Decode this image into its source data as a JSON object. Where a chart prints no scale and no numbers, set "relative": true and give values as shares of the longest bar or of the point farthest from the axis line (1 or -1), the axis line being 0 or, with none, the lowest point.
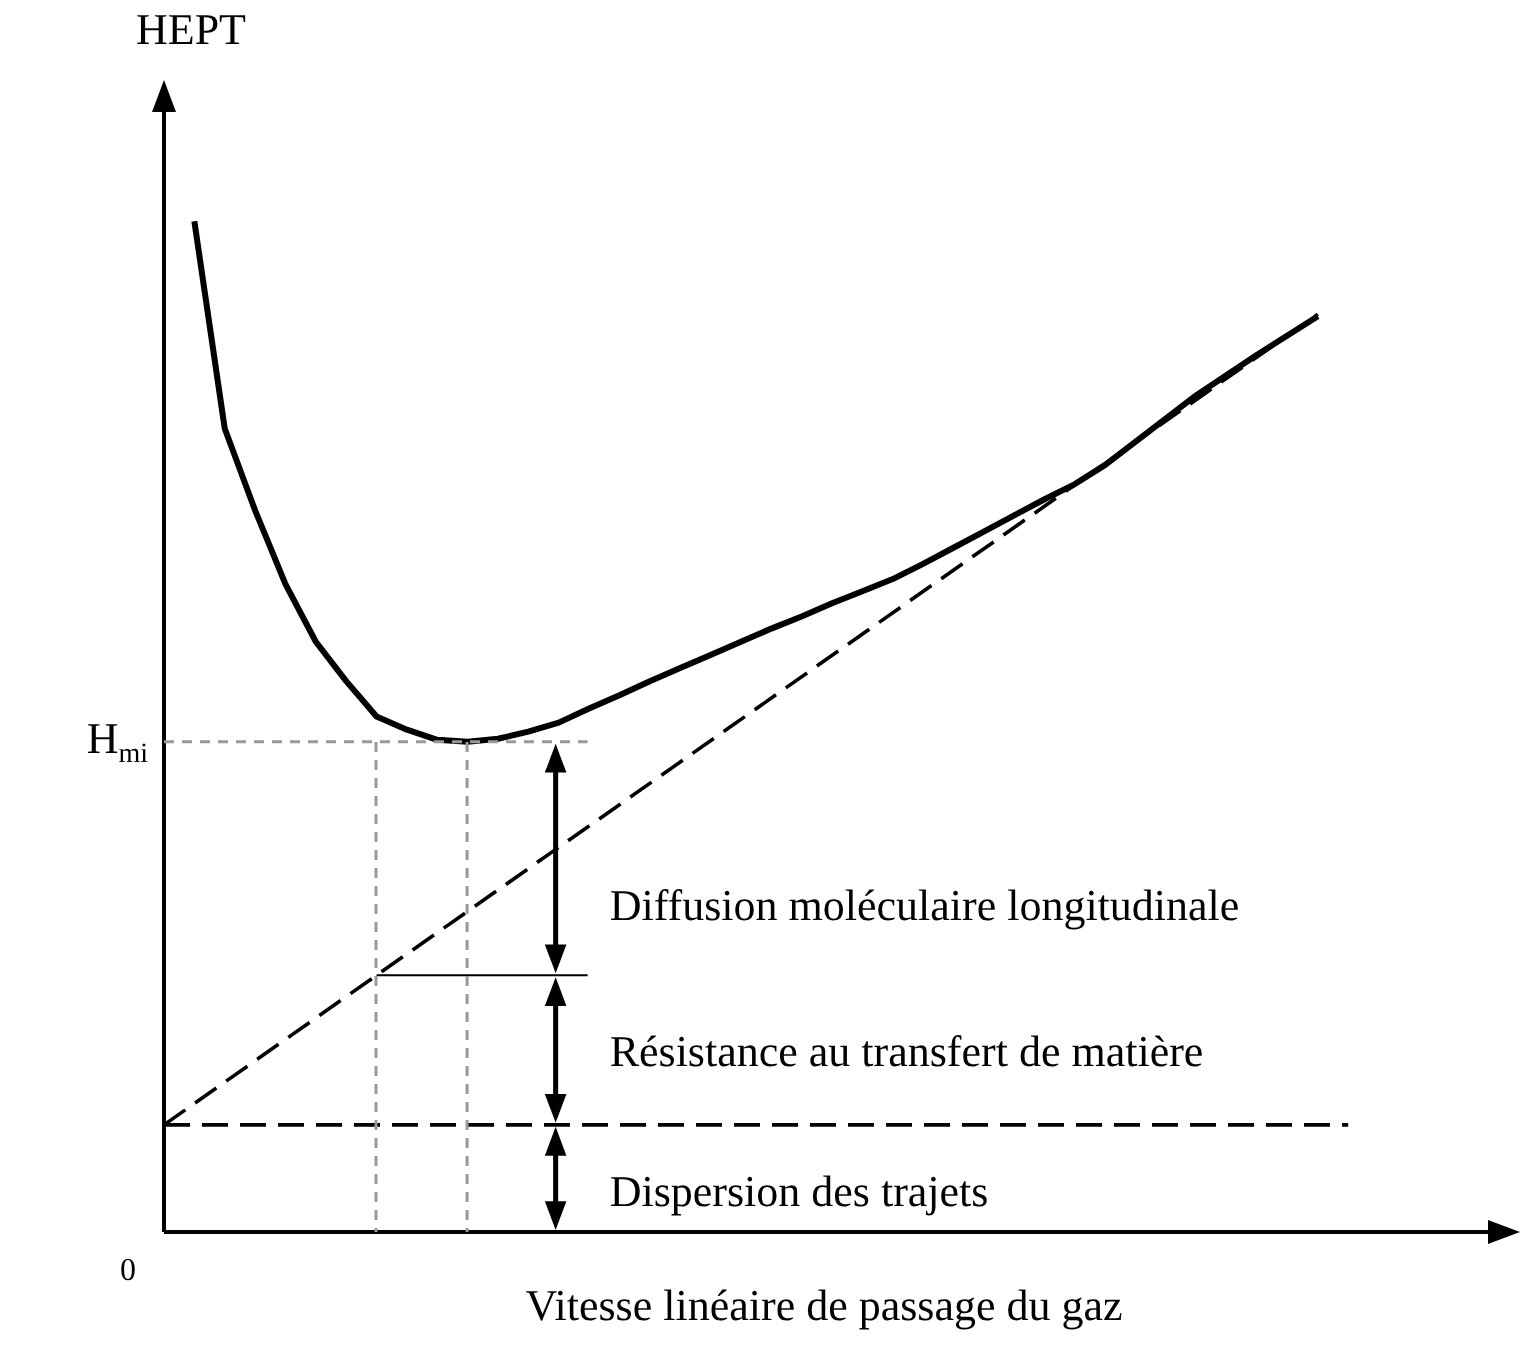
{
  "chart_data": {
    "type": "line",
    "relative": true,
    "ylabel": "HEPT",
    "xlabel": "Vitesse linéaire de passage du gaz",
    "marker": "none",
    "categories": [
      null,
      null,
      null,
      null,
      null,
      null,
      null,
      null,
      null,
      null,
      null,
      null,
      null,
      null,
      null,
      null,
      null,
      null,
      null,
      null,
      null,
      null,
      null,
      null,
      null,
      null,
      null,
      null,
      null,
      null,
      null,
      null,
      null,
      null,
      null,
      null,
      null,
      null,
      null,
      null,
      null,
      null,
      null,
      null,
      null
    ],
    "series": [
      {
        "color": "#000000",
        "line_style": "solid",
        "values": [
          null,
          1,
          0.795,
          0.714,
          0.641,
          0.584,
          0.545,
          0.51,
          0.497,
          0.487,
          0.485,
          0.488,
          0.495,
          0.504,
          0.518,
          0.531,
          0.545,
          0.558,
          0.571,
          0.584,
          0.597,
          0.609,
          0.622,
          0.634,
          0.646,
          0.661,
          0.677,
          0.693,
          0.709,
          0.725,
          0.74,
          0.759,
          0.782,
          0.805,
          0.828,
          0.848,
          0.868,
          0.887,
          0.906,
          null,
          null,
          null,
          null,
          null,
          null
        ]
      },
      {
        "color": "#000000",
        "line_style": "dashed",
        "values": [
          0.106,
          null,
          null,
          null,
          null,
          null,
          null,
          0.254,
          null,
          null,
          null,
          null,
          null,
          null,
          null,
          null,
          null,
          null,
          null,
          null,
          null,
          null,
          null,
          null,
          null,
          null,
          null,
          null,
          null,
          null,
          null,
          null,
          null,
          null,
          null,
          null,
          null,
          null,
          0.908,
          null,
          null,
          null,
          null,
          null,
          null
        ]
      },
      {
        "color": "#000000",
        "line_style": "dashed",
        "values": [
          0.106,
          null,
          null,
          null,
          null,
          null,
          null,
          null,
          null,
          null,
          null,
          null,
          null,
          null,
          null,
          null,
          null,
          null,
          null,
          null,
          null,
          null,
          null,
          null,
          null,
          null,
          null,
          null,
          null,
          null,
          null,
          null,
          null,
          null,
          null,
          null,
          null,
          null,
          null,
          0.106,
          null,
          null,
          null,
          null,
          null
        ]
      }
    ],
    "ref_lines": [
      {
        "axis": "y",
        "value": 0.485,
        "label": "H$_{mi}$",
        "color": "#999999",
        "line_style": "dashed"
      }
    ],
    "annotations": [
      "0",
      "Diffusion moléculaire longitudinale",
      "Résistance au transfert de matière",
      "Dispersion des trajets"
    ]
  }
}
